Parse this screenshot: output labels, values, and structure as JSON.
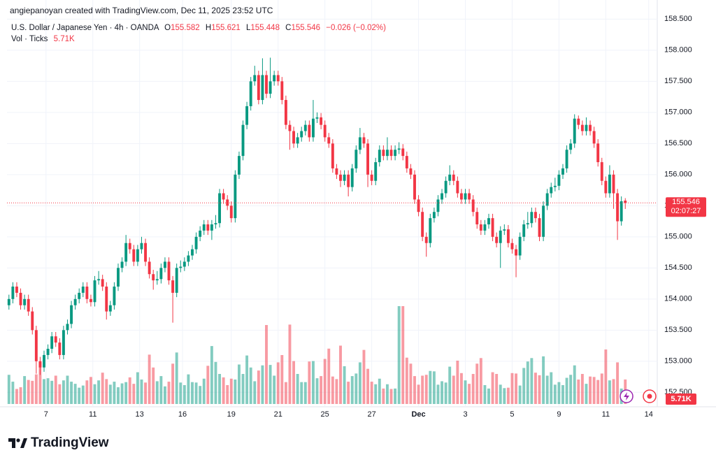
{
  "attribution": "angiepanoyan created with TradingView.com, Dec 11, 2025 23:52 UTC",
  "footer_logo": "TradingView",
  "chart_data": {
    "type": "candlestick",
    "title": "U.S. Dollar / Japanese Yen · 4h · OANDA",
    "ohlc_labels": [
      "O",
      "H",
      "L",
      "C"
    ],
    "change_label": "−0.026 (−0.02%)",
    "countdown": "02:07:27",
    "colors": {
      "up": "#089981",
      "down": "#f23645"
    },
    "grid": true,
    "xlim": [
      -0.5,
      166.2
    ],
    "xticks": [
      {
        "value": 9.5,
        "label": "7"
      },
      {
        "value": 21.5,
        "label": "11"
      },
      {
        "value": 33.5,
        "label": "13"
      },
      {
        "value": 44.5,
        "label": "16"
      },
      {
        "value": 57,
        "label": "19"
      },
      {
        "value": 69,
        "label": "21"
      },
      {
        "value": 81,
        "label": "25"
      },
      {
        "value": 93,
        "label": "27"
      },
      {
        "value": 105,
        "label": "Dec"
      },
      {
        "value": 117,
        "label": "3"
      },
      {
        "value": 129,
        "label": "5"
      },
      {
        "value": 141,
        "label": "9"
      },
      {
        "value": 153,
        "label": "11"
      },
      {
        "value": 164,
        "label": "14"
      }
    ],
    "ylim": [
      152.29,
      158.56
    ],
    "yticks": [
      {
        "value": 152.5,
        "label": "152.500"
      },
      {
        "value": 153,
        "label": "153.000"
      },
      {
        "value": 153.5,
        "label": "153.500"
      },
      {
        "value": 154,
        "label": "154.000"
      },
      {
        "value": 154.5,
        "label": "154.500"
      },
      {
        "value": 155,
        "label": "155.000"
      },
      {
        "value": 155.5,
        "label": "155.500"
      },
      {
        "value": 156,
        "label": "156.000"
      },
      {
        "value": 156.5,
        "label": "156.500"
      },
      {
        "value": 157,
        "label": "157.000"
      },
      {
        "value": 157.5,
        "label": "157.500"
      },
      {
        "value": 158,
        "label": "158.000"
      },
      {
        "value": 158.5,
        "label": "158.500"
      }
    ],
    "open": [
      153.9,
      154,
      154.2,
      154.1,
      153.9,
      154,
      153.8,
      153.5,
      153,
      152.9,
      153.1,
      153.2,
      153.4,
      153.3,
      153.1,
      153.5,
      153.6,
      153.9,
      154,
      154.1,
      154.2,
      154,
      153.95,
      154.3,
      154.32,
      154.2,
      153.8,
      153.9,
      154.2,
      154.5,
      154.6,
      154.9,
      154.8,
      154.6,
      154.8,
      154.9,
      154.6,
      154.4,
      154.3,
      154.32,
      154.5,
      154.6,
      154.3,
      154.1,
      154.5,
      154.52,
      154.6,
      154.7,
      154.8,
      155,
      155.1,
      155.2,
      155.1,
      155.2,
      155.22,
      155.7,
      155.6,
      155.5,
      155.3,
      156,
      156.3,
      156.8,
      157.1,
      157.5,
      157.6,
      157.2,
      157.6,
      157.3,
      157.5,
      157.6,
      157.5,
      157.2,
      156.8,
      156.7,
      156.5,
      156.6,
      156.7,
      156.8,
      156.6,
      156.9,
      156.92,
      156.8,
      156.6,
      156.5,
      156.1,
      156,
      155.9,
      156,
      155.8,
      156.1,
      156.4,
      156.6,
      156.5,
      156,
      155.9,
      156.2,
      156.4,
      156.3,
      156.4,
      156.3,
      156.4,
      156.42,
      156.3,
      156.1,
      156,
      155.6,
      155.4,
      155,
      154.9,
      155.3,
      155.4,
      155.6,
      155.7,
      155.9,
      156,
      155.9,
      155.7,
      155.6,
      155.7,
      155.6,
      155.4,
      155.2,
      155.1,
      155.2,
      155.3,
      155,
      154.9,
      155.1,
      155.12,
      154.9,
      154.8,
      154.7,
      155,
      155.2,
      155.22,
      155.4,
      155.3,
      155,
      155.5,
      155.7,
      155.8,
      155.82,
      156,
      156.1,
      156.4,
      156.5,
      156.9,
      156.8,
      156.7,
      156.8,
      156.7,
      156.5,
      156.2,
      155.9,
      155.7,
      156,
      155.7,
      155.25,
      155.582
    ],
    "high": [
      154.07,
      154.27,
      154.27,
      154.17,
      154.07,
      154.07,
      153.87,
      153.57,
      153.07,
      153.17,
      153.27,
      153.47,
      153.47,
      153.37,
      153.57,
      153.67,
      153.97,
      154.07,
      154.17,
      154.27,
      154.27,
      154.07,
      154.37,
      154.45,
      154.39,
      154.27,
      153.97,
      154.27,
      154.57,
      154.67,
      155.03,
      154.97,
      154.87,
      154.87,
      155,
      154.97,
      154.67,
      154.47,
      154.45,
      154.57,
      154.67,
      154.67,
      154.37,
      154.57,
      154.62,
      154.67,
      154.77,
      154.87,
      155.07,
      155.17,
      155.27,
      155.27,
      155.27,
      155.35,
      155.77,
      155.77,
      155.67,
      155.57,
      156.07,
      156.37,
      156.87,
      157.17,
      157.57,
      157.75,
      157.67,
      157.87,
      157.67,
      157.88,
      157.67,
      157.67,
      157.57,
      157.27,
      156.87,
      156.77,
      156.67,
      156.77,
      156.87,
      156.87,
      157.2,
      157,
      156.99,
      156.87,
      156.67,
      156.57,
      156.17,
      156.07,
      156.07,
      156.07,
      156.17,
      156.47,
      156.75,
      156.67,
      156.57,
      156.07,
      156.27,
      156.47,
      156.47,
      156.6,
      156.47,
      156.47,
      156.52,
      156.49,
      156.37,
      156.17,
      156.07,
      155.67,
      155.47,
      155.07,
      155.37,
      155.47,
      155.67,
      155.77,
      155.97,
      156.15,
      156.07,
      155.97,
      155.77,
      155.77,
      155.77,
      155.67,
      155.47,
      155.27,
      155.27,
      155.37,
      155.37,
      155.07,
      155.17,
      155.2,
      155.19,
      154.97,
      154.87,
      155.07,
      155.27,
      155.4,
      155.47,
      155.47,
      155.37,
      155.57,
      155.77,
      155.87,
      155.95,
      156.07,
      156.17,
      156.47,
      156.57,
      156.97,
      156.95,
      156.87,
      156.92,
      156.87,
      156.77,
      156.57,
      156.27,
      155.97,
      156.15,
      156.07,
      155.77,
      155.65,
      155.621
    ],
    "low": [
      153.83,
      153.93,
      154.03,
      153.83,
      153.83,
      153.73,
      153.43,
      152.8,
      152.78,
      152.83,
      153.03,
      153.13,
      153.23,
      153.03,
      153.03,
      153.43,
      153.53,
      153.83,
      153.93,
      154.03,
      153.93,
      153.88,
      153.88,
      154.23,
      154.13,
      153.67,
      153.73,
      153.83,
      154.13,
      154.43,
      154.53,
      154.73,
      154.53,
      154.53,
      154.73,
      154.53,
      154.33,
      154.15,
      154.23,
      154.25,
      154.43,
      154.23,
      153.62,
      154.03,
      154.43,
      154.45,
      154.53,
      154.63,
      154.73,
      154.93,
      155.03,
      155.03,
      154.95,
      155.13,
      155.15,
      155.53,
      155.43,
      155.23,
      155.23,
      155.93,
      156.23,
      156.73,
      157.03,
      157.43,
      157.13,
      157.13,
      157.23,
      157.23,
      157.43,
      157.43,
      157.13,
      156.73,
      156.4,
      156.43,
      156.43,
      156.53,
      156.63,
      156.53,
      156.53,
      156.83,
      156.73,
      156.53,
      156.43,
      156.03,
      155.93,
      155.8,
      155.83,
      155.65,
      155.73,
      156.03,
      156.33,
      156.43,
      155.8,
      155.83,
      155.83,
      156.13,
      156.23,
      156.23,
      156.23,
      156.23,
      156.33,
      156.23,
      156.03,
      155.93,
      155.53,
      155.33,
      154.93,
      154.68,
      154.83,
      155.23,
      155.33,
      155.53,
      155.63,
      155.83,
      155.83,
      155.63,
      155.53,
      155.53,
      155.53,
      155.33,
      155.13,
      155.03,
      155.03,
      155.13,
      154.93,
      154.83,
      154.5,
      155.03,
      154.83,
      154.73,
      154.35,
      154.63,
      154.93,
      155.13,
      155.15,
      155.23,
      154.93,
      154.93,
      155.43,
      155.63,
      155.73,
      155.75,
      155.93,
      156.03,
      156.33,
      156.43,
      156.73,
      156.63,
      156.63,
      156.63,
      156.43,
      156.13,
      155.83,
      155.63,
      155.63,
      155.45,
      154.95,
      155.18,
      155.448
    ],
    "close": [
      154,
      154.2,
      154.1,
      153.9,
      154,
      153.8,
      153.5,
      153,
      152.9,
      153.1,
      153.2,
      153.4,
      153.3,
      153.1,
      153.5,
      153.6,
      153.9,
      154,
      154.1,
      154.2,
      154,
      153.95,
      154.3,
      154.32,
      154.2,
      153.8,
      153.9,
      154.2,
      154.5,
      154.6,
      154.9,
      154.8,
      154.6,
      154.8,
      154.9,
      154.6,
      154.4,
      154.3,
      154.32,
      154.5,
      154.6,
      154.3,
      154.1,
      154.5,
      154.52,
      154.6,
      154.7,
      154.8,
      155,
      155.1,
      155.2,
      155.1,
      155.2,
      155.22,
      155.7,
      155.6,
      155.5,
      155.3,
      156,
      156.3,
      156.8,
      157.1,
      157.5,
      157.6,
      157.2,
      157.6,
      157.3,
      157.5,
      157.6,
      157.5,
      157.2,
      156.8,
      156.7,
      156.5,
      156.6,
      156.7,
      156.8,
      156.6,
      156.9,
      156.92,
      156.8,
      156.6,
      156.5,
      156.1,
      156,
      155.9,
      156,
      155.8,
      156.1,
      156.4,
      156.6,
      156.5,
      156,
      155.9,
      156.2,
      156.4,
      156.3,
      156.4,
      156.3,
      156.4,
      156.42,
      156.3,
      156.1,
      156,
      155.6,
      155.4,
      155,
      154.9,
      155.3,
      155.4,
      155.6,
      155.7,
      155.9,
      156,
      155.9,
      155.7,
      155.6,
      155.7,
      155.6,
      155.4,
      155.2,
      155.1,
      155.2,
      155.3,
      155,
      154.9,
      155.1,
      155.12,
      154.9,
      154.8,
      154.7,
      155,
      155.2,
      155.22,
      155.4,
      155.3,
      155,
      155.5,
      155.7,
      155.8,
      155.82,
      156,
      156.1,
      156.4,
      156.5,
      156.9,
      156.8,
      156.7,
      156.8,
      156.7,
      156.5,
      156.2,
      155.9,
      155.7,
      156,
      155.7,
      155.25,
      155.572,
      155.546
    ],
    "volume": {
      "name": "Vol · Ticks",
      "values": [
        6800,
        5200,
        3500,
        3900,
        6500,
        5600,
        5400,
        6900,
        9600,
        5800,
        6000,
        5400,
        6600,
        4600,
        5500,
        6600,
        5200,
        4700,
        3800,
        4300,
        5500,
        6300,
        4600,
        5500,
        7300,
        5800,
        4500,
        5200,
        3900,
        4800,
        5100,
        6200,
        4700,
        7400,
        5700,
        5000,
        11500,
        8500,
        5300,
        6500,
        4100,
        5200,
        9400,
        12000,
        5000,
        4400,
        6900,
        5100,
        5000,
        4200,
        5900,
        8900,
        13500,
        9800,
        7000,
        6200,
        4400,
        5900,
        5700,
        9200,
        7000,
        11300,
        8500,
        5300,
        7800,
        9000,
        18400,
        9100,
        6600,
        9700,
        11400,
        5100,
        18500,
        10000,
        7000,
        5100,
        5100,
        9900,
        10000,
        6000,
        6500,
        10500,
        12900,
        6400,
        5800,
        13600,
        8800,
        5200,
        6500,
        7100,
        9700,
        12600,
        8200,
        5200,
        4600,
        5900,
        3600,
        4600,
        3500,
        3600,
        22800,
        22800,
        10800,
        9400,
        6500,
        4500,
        6600,
        6800,
        7700,
        7600,
        4500,
        5300,
        5000,
        8700,
        6600,
        10100,
        7200,
        5500,
        4700,
        7000,
        9400,
        10700,
        4400,
        3600,
        7400,
        7000,
        4500,
        3700,
        3800,
        7200,
        7100,
        4300,
        8400,
        9900,
        10700,
        7300,
        6700,
        11100,
        6600,
        7400,
        4500,
        5100,
        4400,
        6100,
        6800,
        9000,
        5700,
        7000,
        4700,
        6400,
        6300,
        5600,
        7100,
        12700,
        5500,
        5800,
        9700,
        3600,
        5710
      ],
      "value_labels": [
        null,
        null,
        null,
        null,
        null,
        null,
        null,
        null,
        null,
        null,
        null,
        null,
        null,
        null,
        null,
        null,
        null,
        null,
        null,
        null,
        null,
        null,
        null,
        null,
        null,
        null,
        null,
        null,
        null,
        null,
        null,
        null,
        null,
        null,
        null,
        null,
        null,
        null,
        null,
        null,
        null,
        null,
        null,
        null,
        null,
        null,
        null,
        null,
        null,
        null,
        null,
        null,
        null,
        null,
        null,
        null,
        null,
        null,
        null,
        null,
        null,
        null,
        null,
        null,
        null,
        null,
        null,
        null,
        null,
        null,
        null,
        null,
        null,
        null,
        null,
        null,
        null,
        null,
        null,
        null,
        null,
        null,
        null,
        null,
        null,
        null,
        null,
        null,
        null,
        null,
        null,
        null,
        null,
        null,
        null,
        null,
        null,
        null,
        null,
        null,
        null,
        null,
        null,
        null,
        null,
        null,
        null,
        null,
        null,
        null,
        null,
        null,
        null,
        null,
        null,
        null,
        null,
        null,
        null,
        null,
        null,
        null,
        null,
        null,
        null,
        null,
        null,
        null,
        null,
        null,
        null,
        null,
        null,
        null,
        null,
        null,
        null,
        null,
        null,
        null,
        null,
        null,
        null,
        null,
        null,
        null,
        null,
        null,
        null,
        null,
        null,
        null,
        null,
        null,
        null,
        null,
        null,
        null,
        "5.71K"
      ]
    }
  }
}
